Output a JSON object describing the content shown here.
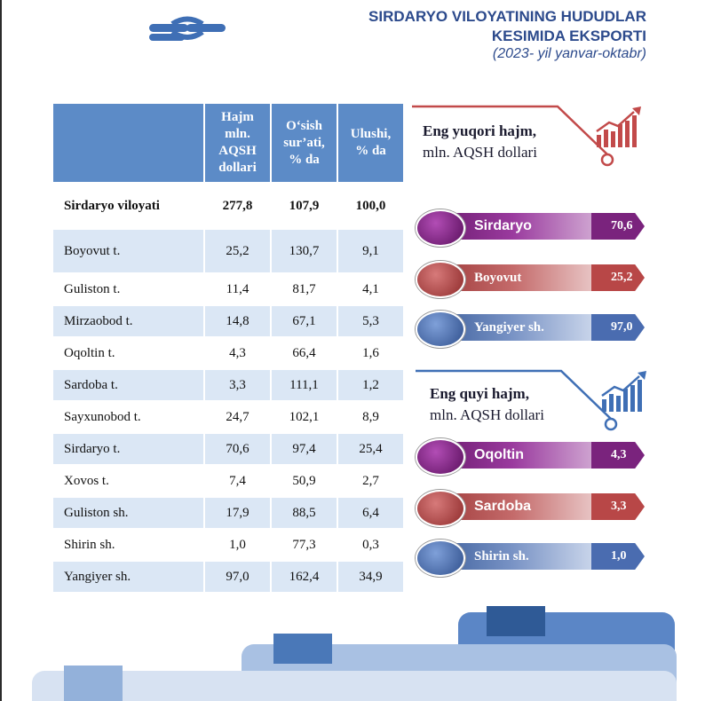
{
  "header": {
    "title_line1": "SIRDARYO VILOYATINING HUDUDLAR",
    "title_line2": "KESIMIDA EKSPORTI",
    "subtitle": "(2023- yil yanvar-oktabr)"
  },
  "table": {
    "headers": {
      "name": "",
      "volume": [
        "Hajm",
        "mln.",
        "AQSH",
        "dollari"
      ],
      "growth": [
        "O‘sish",
        "sur’ati,",
        "% da"
      ],
      "share": [
        "Ulushi,",
        "% da"
      ]
    },
    "total": {
      "name": "Sirdaryo viloyati",
      "volume": "277,8",
      "growth": "107,9",
      "share": "100,0"
    },
    "rows": [
      {
        "name": "Boyovut t.",
        "volume": "25,2",
        "growth": "130,7",
        "share": "9,1"
      },
      {
        "name": "Guliston t.",
        "volume": "11,4",
        "growth": "81,7",
        "share": "4,1"
      },
      {
        "name": "Mirzaobod t.",
        "volume": "14,8",
        "growth": "67,1",
        "share": "5,3"
      },
      {
        "name": "Oqoltin t.",
        "volume": "4,3",
        "growth": "66,4",
        "share": "1,6"
      },
      {
        "name": "Sardoba t.",
        "volume": "3,3",
        "growth": "111,1",
        "share": "1,2"
      },
      {
        "name": "Sayxunobod t.",
        "volume": "24,7",
        "growth": "102,1",
        "share": "8,9"
      },
      {
        "name": "Sirdaryo t.",
        "volume": "70,6",
        "growth": "97,4",
        "share": "25,4"
      },
      {
        "name": "Xovos t.",
        "volume": "7,4",
        "growth": "50,9",
        "share": "2,7"
      },
      {
        "name": "Guliston sh.",
        "volume": "17,9",
        "growth": "88,5",
        "share": "6,4"
      },
      {
        "name": "Shirin sh.",
        "volume": "1,0",
        "growth": "77,3",
        "share": "0,3"
      },
      {
        "name": "Yangiyer sh.",
        "volume": "97,0",
        "growth": "162,4",
        "share": "34,9"
      }
    ]
  },
  "top": {
    "title_bold": "Eng yuqori hajm,",
    "title_rest": "mln. AQSH dollari",
    "items": [
      {
        "label": "Sirdaryo",
        "value": "70,6"
      },
      {
        "label": "Boyovut",
        "value": "25,2"
      },
      {
        "label": "Yangiyer sh.",
        "value": "97,0"
      }
    ]
  },
  "bottom": {
    "title_bold": "Eng quyi hajm,",
    "title_rest": "mln. AQSH dollari",
    "items": [
      {
        "label": "Oqoltin",
        "value": "4,3"
      },
      {
        "label": "Sardoba",
        "value": "3,3"
      },
      {
        "label": "Shirin sh.",
        "value": "1,0"
      }
    ]
  },
  "colors": {
    "accent_blue": "#2c4a8c",
    "table_header": "#5c8bc7",
    "row_shade": "#dbe7f5",
    "purple": "#7a237d",
    "red": "#b84747",
    "blue": "#4a6cb0"
  },
  "icons": {
    "logo": "chain-link-logo",
    "chart_up": "rising-bar-chart-icon"
  }
}
